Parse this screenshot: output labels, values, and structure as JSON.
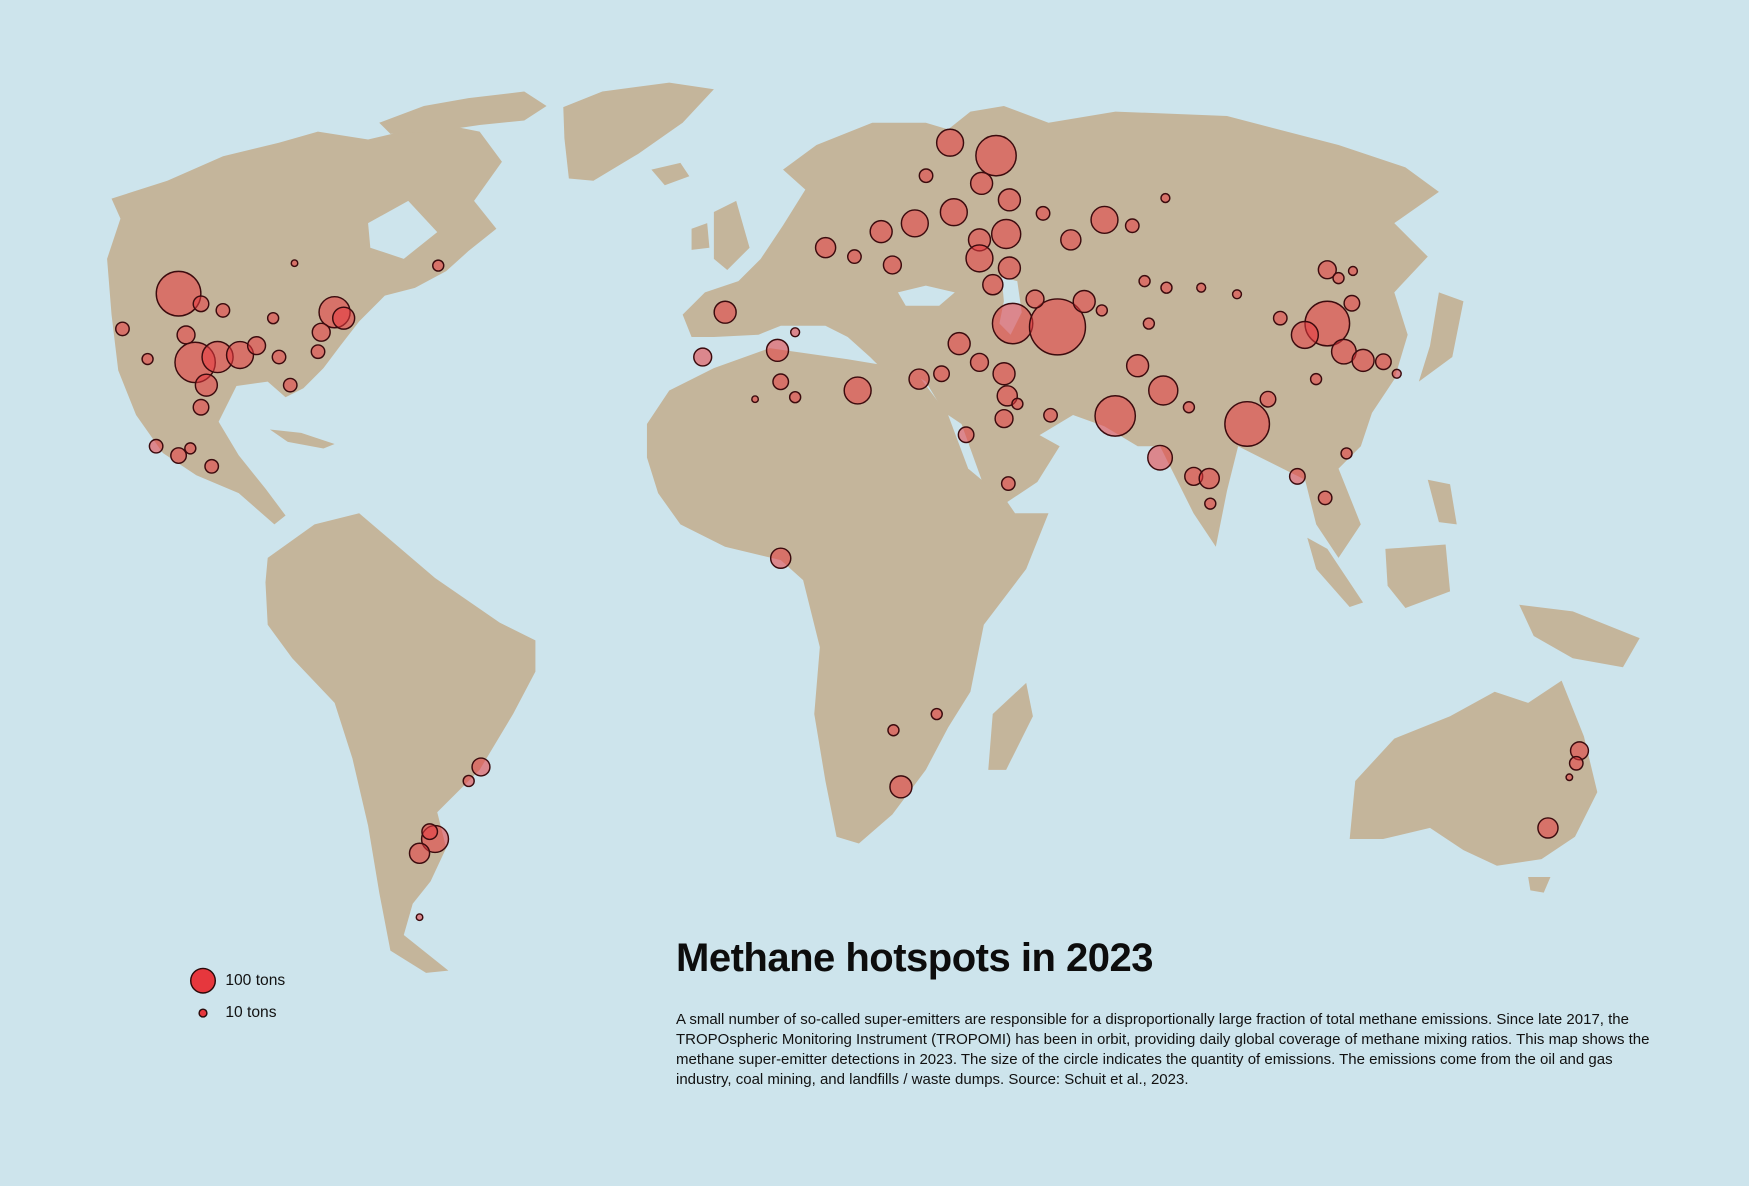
{
  "title": "Methane hotspots in 2023",
  "description": "A small number of so-called super-emitters are responsible for a disproportionally large fraction of total methane emissions. Since late 2017, the TROPOspheric Monitoring Instrument (TROPOMI) has been in orbit, providing daily global coverage of methane mixing ratios. This map shows the methane super-emitter detections in 2023. The size of the circle indicates the quantity of emissions. The emissions come from the oil and gas industry, coal mining, and landfills / waste dumps. Source: Schuit et al., 2023.",
  "legend": {
    "items": [
      {
        "label": "100 tons",
        "tons": 100
      },
      {
        "label": "10 tons",
        "tons": 10
      }
    ]
  },
  "hotspots": [
    {
      "lon": -105.2,
      "lat": 43.0,
      "tons": 330
    },
    {
      "lon": -101,
      "lat": 41.3,
      "tons": 40
    },
    {
      "lon": -96.9,
      "lat": 40.2,
      "tons": 30
    },
    {
      "lon": -103.8,
      "lat": 36.3,
      "tons": 53
    },
    {
      "lon": -102.1,
      "lat": 32.2,
      "tons": 270
    },
    {
      "lon": -97.9,
      "lat": 33.0,
      "tons": 160
    },
    {
      "lon": -93.7,
      "lat": 33.3,
      "tons": 120
    },
    {
      "lon": -90.6,
      "lat": 34.7,
      "tons": 53
    },
    {
      "lon": -100,
      "lat": 28.8,
      "tons": 80
    },
    {
      "lon": -101,
      "lat": 25.5,
      "tons": 40
    },
    {
      "lon": -86.4,
      "lat": 33.0,
      "tons": 30
    },
    {
      "lon": -84.3,
      "lat": 28.8,
      "tons": 30
    },
    {
      "lon": -76,
      "lat": 39.9,
      "tons": 160
    },
    {
      "lon": -74.3,
      "lat": 38.9,
      "tons": 80
    },
    {
      "lon": -78.5,
      "lat": 36.7,
      "tons": 53
    },
    {
      "lon": -79.1,
      "lat": 33.8,
      "tons": 30
    },
    {
      "lon": -87.5,
      "lat": 38.9,
      "tons": 20
    },
    {
      "lon": -115.7,
      "lat": 37.2,
      "tons": 30
    },
    {
      "lon": -111,
      "lat": 32.7,
      "tons": 20
    },
    {
      "lon": -83.5,
      "lat": 48.1,
      "tons": 7
    },
    {
      "lon": -56.6,
      "lat": 47.7,
      "tons": 20
    },
    {
      "lon": -109.4,
      "lat": 19.9,
      "tons": 30
    },
    {
      "lon": -105.2,
      "lat": 18.6,
      "tons": 40
    },
    {
      "lon": -99,
      "lat": 17.1,
      "tons": 30
    },
    {
      "lon": -103,
      "lat": 19.6,
      "tons": 20
    },
    {
      "lon": -48.6,
      "lat": -24.2,
      "tons": 53
    },
    {
      "lon": -50.9,
      "lat": -26.1,
      "tons": 20
    },
    {
      "lon": -57.2,
      "lat": -34,
      "tons": 120
    },
    {
      "lon": -60.1,
      "lat": -36.5,
      "tons": 67
    },
    {
      "lon": -58.2,
      "lat": -33,
      "tons": 40
    },
    {
      "lon": -60.1,
      "lat": -47.7,
      "tons": 7
    },
    {
      "lon": -7.1,
      "lat": 33.0,
      "tons": 53
    },
    {
      "lon": -2.9,
      "lat": 39.9,
      "tons": 80
    },
    {
      "lon": 6.9,
      "lat": 34.0,
      "tons": 80
    },
    {
      "lon": 7.5,
      "lat": 29.3,
      "tons": 40
    },
    {
      "lon": 10.2,
      "lat": 27.0,
      "tons": 20
    },
    {
      "lon": 10.2,
      "lat": 36.7,
      "tons": 13
    },
    {
      "lon": 2.7,
      "lat": 26.7,
      "tons": 7
    },
    {
      "lon": 21.9,
      "lat": 28.0,
      "tons": 120
    },
    {
      "lon": 7.5,
      "lat": 4.3,
      "tons": 67
    },
    {
      "lon": 28.6,
      "lat": -19.2,
      "tons": 20
    },
    {
      "lon": 36.7,
      "lat": -17.0,
      "tons": 20
    },
    {
      "lon": 30,
      "lat": -26.9,
      "tons": 80
    },
    {
      "lon": 33.4,
      "lat": 29.7,
      "tons": 67
    },
    {
      "lon": 37.6,
      "lat": 30.5,
      "tons": 40
    },
    {
      "lon": 40.9,
      "lat": 35,
      "tons": 80
    },
    {
      "lon": 44.7,
      "lat": 32.2,
      "tons": 53
    },
    {
      "lon": 49.3,
      "lat": 30.5,
      "tons": 80
    },
    {
      "lon": 49.9,
      "lat": 27.2,
      "tons": 67
    },
    {
      "lon": 49.3,
      "lat": 23.8,
      "tons": 53
    },
    {
      "lon": 42.2,
      "lat": 21.5,
      "tons": 40
    },
    {
      "lon": 50.1,
      "lat": 14.7,
      "tons": 30
    },
    {
      "lon": 58,
      "lat": 24.3,
      "tons": 30
    },
    {
      "lon": 51.8,
      "lat": 26,
      "tons": 20
    },
    {
      "lon": 15.9,
      "lat": 50.7,
      "tons": 67
    },
    {
      "lon": 21.3,
      "lat": 49.2,
      "tons": 30
    },
    {
      "lon": 26.3,
      "lat": 53.4,
      "tons": 80
    },
    {
      "lon": 28.4,
      "lat": 47.8,
      "tons": 53
    },
    {
      "lon": 32.6,
      "lat": 54.8,
      "tons": 120
    },
    {
      "lon": 39.2,
      "lat": 68.5,
      "tons": 120
    },
    {
      "lon": 47.8,
      "lat": 66.3,
      "tons": 270
    },
    {
      "lon": 45.1,
      "lat": 61.6,
      "tons": 80
    },
    {
      "lon": 50.3,
      "lat": 58.8,
      "tons": 80
    },
    {
      "lon": 39.9,
      "lat": 56.7,
      "tons": 120
    },
    {
      "lon": 44.7,
      "lat": 52,
      "tons": 80
    },
    {
      "lon": 49.7,
      "lat": 53,
      "tons": 140
    },
    {
      "lon": 44.7,
      "lat": 48.9,
      "tons": 120
    },
    {
      "lon": 50.3,
      "lat": 47.3,
      "tons": 80
    },
    {
      "lon": 47.2,
      "lat": 44.5,
      "tons": 67
    },
    {
      "lon": 61.8,
      "lat": 52,
      "tons": 67
    },
    {
      "lon": 56.6,
      "lat": 56.5,
      "tons": 30
    },
    {
      "lon": 68.1,
      "lat": 55.4,
      "tons": 120
    },
    {
      "lon": 73.3,
      "lat": 54.4,
      "tons": 30
    },
    {
      "lon": 79.5,
      "lat": 59.1,
      "tons": 13
    },
    {
      "lon": 34.7,
      "lat": 62.9,
      "tons": 30
    },
    {
      "lon": 50.9,
      "lat": 38,
      "tons": 270
    },
    {
      "lon": 59.3,
      "lat": 37.5,
      "tons": 520
    },
    {
      "lon": 64.3,
      "lat": 41.7,
      "tons": 80
    },
    {
      "lon": 67.6,
      "lat": 40.2,
      "tons": 20
    },
    {
      "lon": 55.1,
      "lat": 42.1,
      "tons": 53
    },
    {
      "lon": 76.4,
      "lat": 38,
      "tons": 20
    },
    {
      "lon": 75.6,
      "lat": 45.1,
      "tons": 20
    },
    {
      "lon": 79.7,
      "lat": 44,
      "tons": 20
    },
    {
      "lon": 86.2,
      "lat": 44,
      "tons": 13
    },
    {
      "lon": 92.9,
      "lat": 42.9,
      "tons": 13
    },
    {
      "lon": 70.1,
      "lat": 24.2,
      "tons": 270
    },
    {
      "lon": 79.1,
      "lat": 28,
      "tons": 140
    },
    {
      "lon": 74.3,
      "lat": 31.7,
      "tons": 80
    },
    {
      "lon": 78.5,
      "lat": 18.3,
      "tons": 100
    },
    {
      "lon": 94.8,
      "lat": 23,
      "tons": 330
    },
    {
      "lon": 98.7,
      "lat": 26.7,
      "tons": 40
    },
    {
      "lon": 84.8,
      "lat": 15.7,
      "tons": 53
    },
    {
      "lon": 87.7,
      "lat": 15.4,
      "tons": 67
    },
    {
      "lon": 87.9,
      "lat": 11.9,
      "tons": 20
    },
    {
      "lon": 83.9,
      "lat": 25.5,
      "tons": 20
    },
    {
      "lon": 104.2,
      "lat": 15.7,
      "tons": 40
    },
    {
      "lon": 109.4,
      "lat": 12.7,
      "tons": 30
    },
    {
      "lon": 113.4,
      "lat": 18.9,
      "tons": 20
    },
    {
      "lon": 109.8,
      "lat": 47,
      "tons": 53
    },
    {
      "lon": 114.6,
      "lat": 46.8,
      "tons": 13
    },
    {
      "lon": 109.8,
      "lat": 38,
      "tons": 330
    },
    {
      "lon": 105.6,
      "lat": 36.3,
      "tons": 120
    },
    {
      "lon": 112.9,
      "lat": 33.8,
      "tons": 100
    },
    {
      "lon": 116.5,
      "lat": 32.5,
      "tons": 80
    },
    {
      "lon": 120.3,
      "lat": 32.3,
      "tons": 40
    },
    {
      "lon": 101,
      "lat": 38.9,
      "tons": 30
    },
    {
      "lon": 114.4,
      "lat": 41.4,
      "tons": 40
    },
    {
      "lon": 107.7,
      "lat": 29.7,
      "tons": 20
    },
    {
      "lon": 122.8,
      "lat": 30.5,
      "tons": 13
    },
    {
      "lon": 111.9,
      "lat": 45.6,
      "tons": 20
    },
    {
      "lon": 157,
      "lat": -22,
      "tons": 53
    },
    {
      "lon": 156.4,
      "lat": -23.7,
      "tons": 30
    },
    {
      "lon": 151.1,
      "lat": -32.5,
      "tons": 67
    },
    {
      "lon": 155.1,
      "lat": -25.6,
      "tons": 7
    }
  ]
}
